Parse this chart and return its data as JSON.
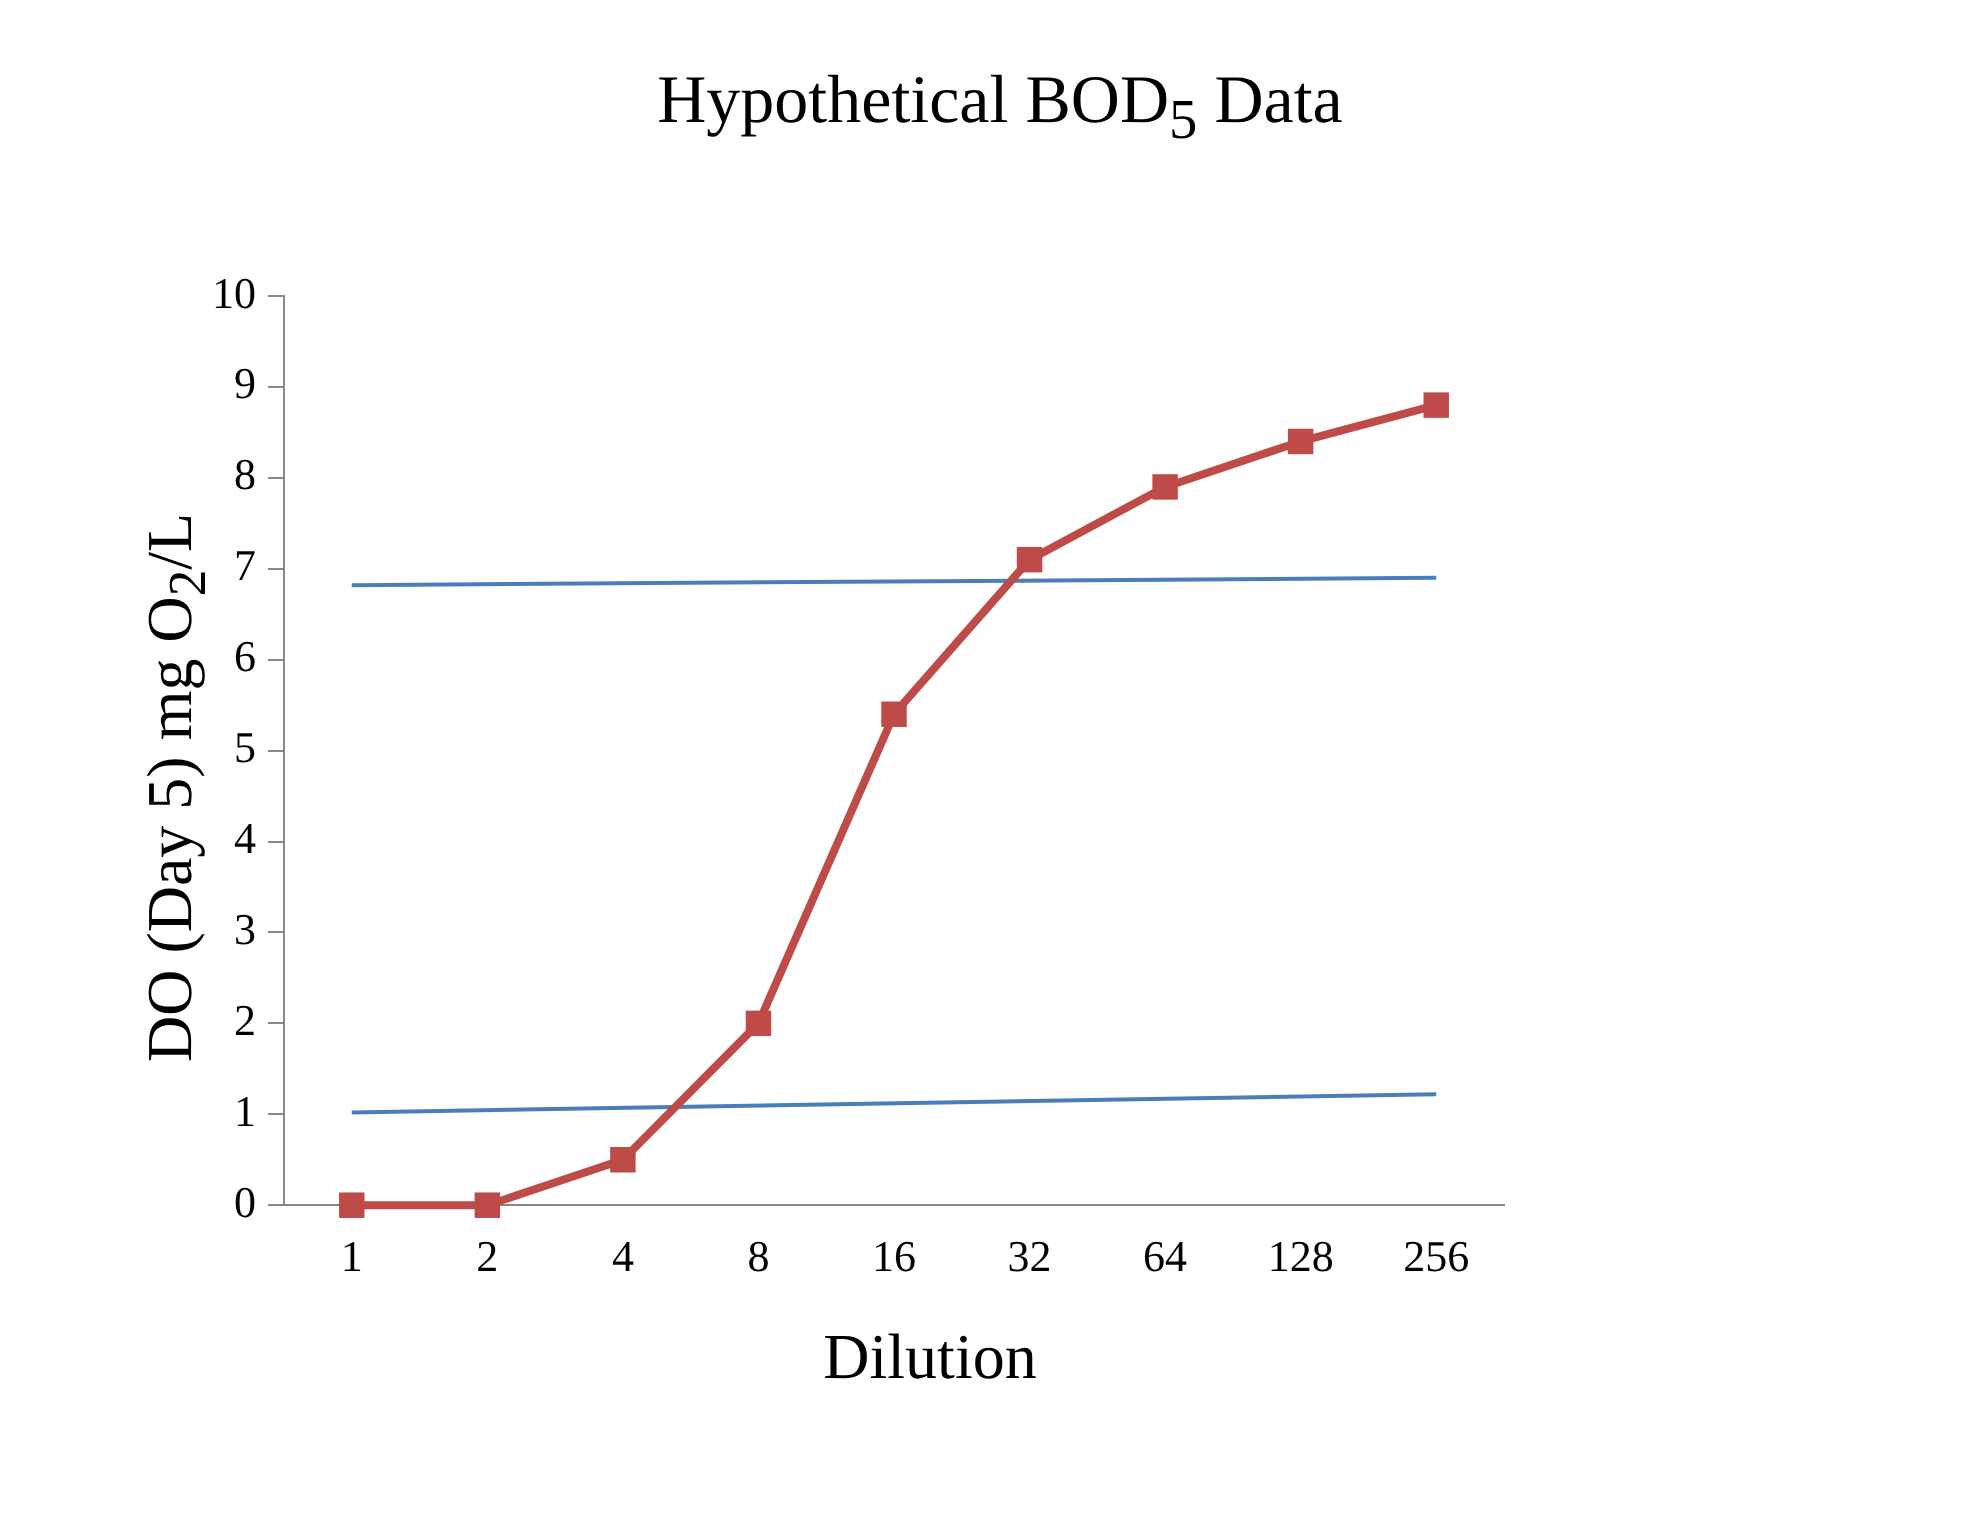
{
  "chart_data": {
    "type": "line",
    "title": "Hypothetical BOD$_{5}$ Data",
    "xlabel": "Dilution",
    "ylabel": "DO (Day 5)  mg O$_{2}$/L",
    "categories": [
      "1",
      "2",
      "4",
      "8",
      "16",
      "32",
      "64",
      "128",
      "256"
    ],
    "series": [
      {
        "color": "#be4b48",
        "marker": "square",
        "values": [
          0,
          0,
          0.5,
          2.0,
          5.4,
          7.1,
          7.9,
          8.4,
          8.8
        ]
      },
      {
        "color": "#4a7ebb",
        "marker": "none",
        "values": [
          6.82,
          null,
          null,
          null,
          null,
          null,
          null,
          null,
          6.9
        ]
      },
      {
        "color": "#4a7ebb",
        "marker": "none",
        "values": [
          1.02,
          null,
          null,
          null,
          null,
          null,
          null,
          null,
          1.22
        ]
      }
    ],
    "ylim": [
      0,
      10
    ],
    "yticks": [
      0,
      1,
      2,
      3,
      4,
      5,
      6,
      7,
      8,
      9,
      10
    ],
    "grid": false,
    "legend": false
  }
}
